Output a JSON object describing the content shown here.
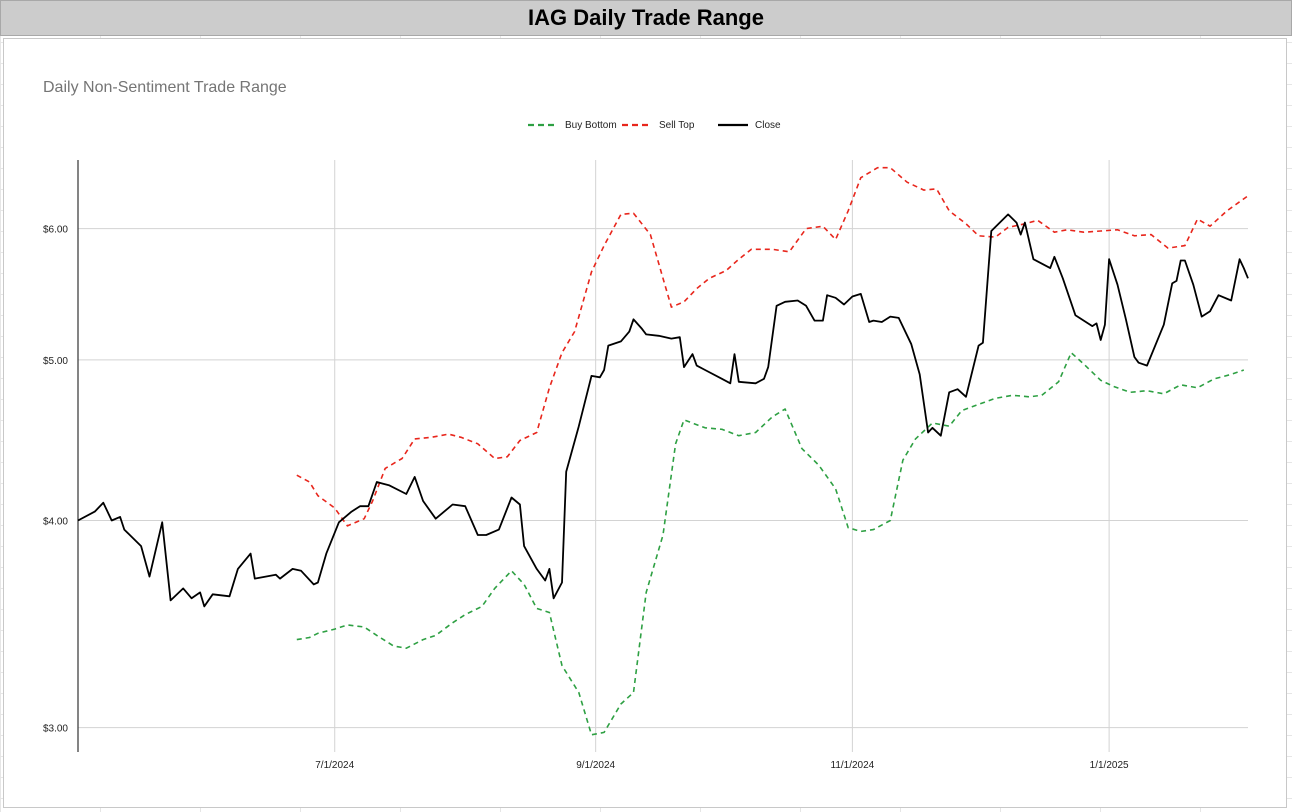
{
  "header": {
    "title": "IAG Daily Trade Range"
  },
  "chart_data": {
    "type": "line",
    "title": "Daily Non-Sentiment Trade Range",
    "xlabel": "",
    "ylabel": "",
    "y_scale": "log",
    "ylim": [
      2.9,
      6.6
    ],
    "xlim": [
      "2024-05-01",
      "2025-02-03"
    ],
    "x_ticks": [
      {
        "date": "2024-07-01",
        "label": "7/1/2024"
      },
      {
        "date": "2024-09-01",
        "label": "9/1/2024"
      },
      {
        "date": "2024-11-01",
        "label": "11/1/2024"
      },
      {
        "date": "2025-01-01",
        "label": "1/1/2025"
      }
    ],
    "y_ticks": [
      {
        "value": 3.0,
        "label": "$3.00"
      },
      {
        "value": 4.0,
        "label": "$4.00"
      },
      {
        "value": 5.0,
        "label": "$5.00"
      },
      {
        "value": 6.0,
        "label": "$6.00"
      }
    ],
    "grid": true,
    "legend_position": "top-center",
    "series": [
      {
        "name": "Buy Bottom",
        "color": "#2ea043",
        "dash": true,
        "points": [
          [
            "2024-06-22",
            3.39
          ],
          [
            "2024-06-25",
            3.4
          ],
          [
            "2024-06-27",
            3.42
          ],
          [
            "2024-07-01",
            3.44
          ],
          [
            "2024-07-04",
            3.46
          ],
          [
            "2024-07-08",
            3.45
          ],
          [
            "2024-07-11",
            3.41
          ],
          [
            "2024-07-15",
            3.36
          ],
          [
            "2024-07-18",
            3.35
          ],
          [
            "2024-07-22",
            3.39
          ],
          [
            "2024-07-25",
            3.41
          ],
          [
            "2024-07-29",
            3.47
          ],
          [
            "2024-08-01",
            3.51
          ],
          [
            "2024-08-05",
            3.55
          ],
          [
            "2024-08-08",
            3.64
          ],
          [
            "2024-08-12",
            3.73
          ],
          [
            "2024-08-15",
            3.66
          ],
          [
            "2024-08-18",
            3.54
          ],
          [
            "2024-08-21",
            3.52
          ],
          [
            "2024-08-24",
            3.27
          ],
          [
            "2024-08-28",
            3.15
          ],
          [
            "2024-08-31",
            2.97
          ],
          [
            "2024-09-03",
            2.98
          ],
          [
            "2024-09-07",
            3.1
          ],
          [
            "2024-09-10",
            3.15
          ],
          [
            "2024-09-13",
            3.62
          ],
          [
            "2024-09-17",
            3.92
          ],
          [
            "2024-09-20",
            4.45
          ],
          [
            "2024-09-22",
            4.6
          ],
          [
            "2024-09-27",
            4.55
          ],
          [
            "2024-10-01",
            4.54
          ],
          [
            "2024-10-05",
            4.5
          ],
          [
            "2024-10-09",
            4.52
          ],
          [
            "2024-10-13",
            4.62
          ],
          [
            "2024-10-16",
            4.67
          ],
          [
            "2024-10-20",
            4.42
          ],
          [
            "2024-10-24",
            4.32
          ],
          [
            "2024-10-28",
            4.18
          ],
          [
            "2024-10-31",
            3.96
          ],
          [
            "2024-11-03",
            3.94
          ],
          [
            "2024-11-06",
            3.95
          ],
          [
            "2024-11-10",
            4.0
          ],
          [
            "2024-11-13",
            4.35
          ],
          [
            "2024-11-16",
            4.48
          ],
          [
            "2024-11-20",
            4.58
          ],
          [
            "2024-11-24",
            4.56
          ],
          [
            "2024-11-27",
            4.66
          ],
          [
            "2024-12-01",
            4.7
          ],
          [
            "2024-12-05",
            4.74
          ],
          [
            "2024-12-09",
            4.76
          ],
          [
            "2024-12-13",
            4.75
          ],
          [
            "2024-12-16",
            4.76
          ],
          [
            "2024-12-20",
            4.85
          ],
          [
            "2024-12-23",
            5.05
          ],
          [
            "2024-12-26",
            4.97
          ],
          [
            "2024-12-30",
            4.86
          ],
          [
            "2025-01-02",
            4.82
          ],
          [
            "2025-01-06",
            4.78
          ],
          [
            "2025-01-10",
            4.79
          ],
          [
            "2025-01-14",
            4.77
          ],
          [
            "2025-01-18",
            4.83
          ],
          [
            "2025-01-22",
            4.81
          ],
          [
            "2025-01-26",
            4.87
          ],
          [
            "2025-01-30",
            4.9
          ],
          [
            "2025-02-02",
            4.93
          ]
        ]
      },
      {
        "name": "Sell Top",
        "color": "#e8261c",
        "dash": true,
        "points": [
          [
            "2024-06-22",
            4.26
          ],
          [
            "2024-06-25",
            4.22
          ],
          [
            "2024-06-27",
            4.14
          ],
          [
            "2024-07-01",
            4.07
          ],
          [
            "2024-07-04",
            3.97
          ],
          [
            "2024-07-08",
            4.01
          ],
          [
            "2024-07-10",
            4.11
          ],
          [
            "2024-07-13",
            4.3
          ],
          [
            "2024-07-17",
            4.36
          ],
          [
            "2024-07-20",
            4.48
          ],
          [
            "2024-07-24",
            4.49
          ],
          [
            "2024-07-28",
            4.51
          ],
          [
            "2024-07-31",
            4.49
          ],
          [
            "2024-08-04",
            4.45
          ],
          [
            "2024-08-08",
            4.36
          ],
          [
            "2024-08-11",
            4.37
          ],
          [
            "2024-08-14",
            4.47
          ],
          [
            "2024-08-18",
            4.52
          ],
          [
            "2024-08-21",
            4.81
          ],
          [
            "2024-08-24",
            5.05
          ],
          [
            "2024-08-27",
            5.2
          ],
          [
            "2024-08-31",
            5.65
          ],
          [
            "2024-09-03",
            5.86
          ],
          [
            "2024-09-07",
            6.12
          ],
          [
            "2024-09-10",
            6.13
          ],
          [
            "2024-09-14",
            5.95
          ],
          [
            "2024-09-17",
            5.6
          ],
          [
            "2024-09-19",
            5.38
          ],
          [
            "2024-09-22",
            5.42
          ],
          [
            "2024-09-25",
            5.52
          ],
          [
            "2024-09-28",
            5.6
          ],
          [
            "2024-10-02",
            5.66
          ],
          [
            "2024-10-05",
            5.75
          ],
          [
            "2024-10-08",
            5.83
          ],
          [
            "2024-10-13",
            5.83
          ],
          [
            "2024-10-17",
            5.81
          ],
          [
            "2024-10-21",
            6.0
          ],
          [
            "2024-10-25",
            6.02
          ],
          [
            "2024-10-28",
            5.91
          ],
          [
            "2024-10-31",
            6.15
          ],
          [
            "2024-11-03",
            6.44
          ],
          [
            "2024-11-07",
            6.53
          ],
          [
            "2024-11-10",
            6.53
          ],
          [
            "2024-11-14",
            6.4
          ],
          [
            "2024-11-18",
            6.33
          ],
          [
            "2024-11-21",
            6.34
          ],
          [
            "2024-11-24",
            6.15
          ],
          [
            "2024-11-28",
            6.04
          ],
          [
            "2024-12-01",
            5.94
          ],
          [
            "2024-12-05",
            5.93
          ],
          [
            "2024-12-08",
            6.01
          ],
          [
            "2024-12-12",
            6.04
          ],
          [
            "2024-12-15",
            6.07
          ],
          [
            "2024-12-19",
            5.97
          ],
          [
            "2024-12-22",
            5.99
          ],
          [
            "2024-12-26",
            5.97
          ],
          [
            "2024-12-30",
            5.98
          ],
          [
            "2025-01-03",
            5.99
          ],
          [
            "2025-01-07",
            5.94
          ],
          [
            "2025-01-11",
            5.95
          ],
          [
            "2025-01-15",
            5.84
          ],
          [
            "2025-01-19",
            5.86
          ],
          [
            "2025-01-22",
            6.08
          ],
          [
            "2025-01-25",
            6.02
          ],
          [
            "2025-01-29",
            6.15
          ],
          [
            "2025-02-03",
            6.28
          ]
        ]
      },
      {
        "name": "Close",
        "color": "#000000",
        "dash": false,
        "points": [
          [
            "2024-05-01",
            4.0
          ],
          [
            "2024-05-05",
            4.05
          ],
          [
            "2024-05-07",
            4.1
          ],
          [
            "2024-05-09",
            4.0
          ],
          [
            "2024-05-11",
            4.02
          ],
          [
            "2024-05-12",
            3.95
          ],
          [
            "2024-05-16",
            3.86
          ],
          [
            "2024-05-18",
            3.7
          ],
          [
            "2024-05-21",
            3.99
          ],
          [
            "2024-05-23",
            3.58
          ],
          [
            "2024-05-26",
            3.64
          ],
          [
            "2024-05-28",
            3.59
          ],
          [
            "2024-05-30",
            3.62
          ],
          [
            "2024-05-31",
            3.55
          ],
          [
            "2024-06-02",
            3.61
          ],
          [
            "2024-06-06",
            3.6
          ],
          [
            "2024-06-08",
            3.74
          ],
          [
            "2024-06-11",
            3.82
          ],
          [
            "2024-06-12",
            3.69
          ],
          [
            "2024-06-17",
            3.71
          ],
          [
            "2024-06-18",
            3.69
          ],
          [
            "2024-06-21",
            3.74
          ],
          [
            "2024-06-23",
            3.73
          ],
          [
            "2024-06-26",
            3.66
          ],
          [
            "2024-06-27",
            3.67
          ],
          [
            "2024-06-29",
            3.82
          ],
          [
            "2024-07-02",
            3.99
          ],
          [
            "2024-07-05",
            4.05
          ],
          [
            "2024-07-07",
            4.08
          ],
          [
            "2024-07-09",
            4.08
          ],
          [
            "2024-07-11",
            4.22
          ],
          [
            "2024-07-14",
            4.2
          ],
          [
            "2024-07-18",
            4.15
          ],
          [
            "2024-07-20",
            4.25
          ],
          [
            "2024-07-22",
            4.11
          ],
          [
            "2024-07-25",
            4.01
          ],
          [
            "2024-07-27",
            4.05
          ],
          [
            "2024-07-29",
            4.09
          ],
          [
            "2024-08-01",
            4.08
          ],
          [
            "2024-08-04",
            3.92
          ],
          [
            "2024-08-06",
            3.92
          ],
          [
            "2024-08-09",
            3.95
          ],
          [
            "2024-08-12",
            4.13
          ],
          [
            "2024-08-14",
            4.09
          ],
          [
            "2024-08-15",
            3.86
          ],
          [
            "2024-08-18",
            3.74
          ],
          [
            "2024-08-20",
            3.68
          ],
          [
            "2024-08-21",
            3.74
          ],
          [
            "2024-08-22",
            3.59
          ],
          [
            "2024-08-24",
            3.67
          ],
          [
            "2024-08-25",
            4.28
          ],
          [
            "2024-08-28",
            4.56
          ],
          [
            "2024-08-31",
            4.89
          ],
          [
            "2024-09-02",
            4.88
          ],
          [
            "2024-09-03",
            4.93
          ],
          [
            "2024-09-04",
            5.1
          ],
          [
            "2024-09-07",
            5.13
          ],
          [
            "2024-09-09",
            5.2
          ],
          [
            "2024-09-10",
            5.29
          ],
          [
            "2024-09-12",
            5.22
          ],
          [
            "2024-09-13",
            5.18
          ],
          [
            "2024-09-16",
            5.17
          ],
          [
            "2024-09-19",
            5.15
          ],
          [
            "2024-09-21",
            5.16
          ],
          [
            "2024-09-22",
            4.95
          ],
          [
            "2024-09-24",
            5.04
          ],
          [
            "2024-09-25",
            4.96
          ],
          [
            "2024-09-27",
            4.93
          ],
          [
            "2024-10-01",
            4.87
          ],
          [
            "2024-10-03",
            4.84
          ],
          [
            "2024-10-04",
            5.04
          ],
          [
            "2024-10-05",
            4.85
          ],
          [
            "2024-10-09",
            4.84
          ],
          [
            "2024-10-11",
            4.87
          ],
          [
            "2024-10-12",
            4.95
          ],
          [
            "2024-10-14",
            5.39
          ],
          [
            "2024-10-16",
            5.42
          ],
          [
            "2024-10-19",
            5.43
          ],
          [
            "2024-10-21",
            5.39
          ],
          [
            "2024-10-23",
            5.28
          ],
          [
            "2024-10-25",
            5.28
          ],
          [
            "2024-10-26",
            5.47
          ],
          [
            "2024-10-28",
            5.45
          ],
          [
            "2024-10-30",
            5.4
          ],
          [
            "2024-11-01",
            5.46
          ],
          [
            "2024-11-03",
            5.48
          ],
          [
            "2024-11-05",
            5.27
          ],
          [
            "2024-11-06",
            5.28
          ],
          [
            "2024-11-08",
            5.27
          ],
          [
            "2024-11-10",
            5.31
          ],
          [
            "2024-11-12",
            5.3
          ],
          [
            "2024-11-15",
            5.11
          ],
          [
            "2024-11-17",
            4.9
          ],
          [
            "2024-11-19",
            4.52
          ],
          [
            "2024-11-20",
            4.55
          ],
          [
            "2024-11-22",
            4.5
          ],
          [
            "2024-11-24",
            4.78
          ],
          [
            "2024-11-26",
            4.8
          ],
          [
            "2024-11-28",
            4.75
          ],
          [
            "2024-12-01",
            5.1
          ],
          [
            "2024-12-02",
            5.12
          ],
          [
            "2024-12-04",
            5.98
          ],
          [
            "2024-12-08",
            6.12
          ],
          [
            "2024-12-10",
            6.05
          ],
          [
            "2024-12-11",
            5.95
          ],
          [
            "2024-12-12",
            6.05
          ],
          [
            "2024-12-14",
            5.75
          ],
          [
            "2024-12-18",
            5.68
          ],
          [
            "2024-12-19",
            5.77
          ],
          [
            "2024-12-21",
            5.6
          ],
          [
            "2024-12-24",
            5.32
          ],
          [
            "2024-12-28",
            5.24
          ],
          [
            "2024-12-29",
            5.26
          ],
          [
            "2024-12-30",
            5.14
          ],
          [
            "2024-12-31",
            5.25
          ],
          [
            "2025-01-01",
            5.75
          ],
          [
            "2025-01-03",
            5.55
          ],
          [
            "2025-01-05",
            5.29
          ],
          [
            "2025-01-07",
            5.02
          ],
          [
            "2025-01-08",
            4.98
          ],
          [
            "2025-01-10",
            4.96
          ],
          [
            "2025-01-14",
            5.25
          ],
          [
            "2025-01-16",
            5.56
          ],
          [
            "2025-01-17",
            5.58
          ],
          [
            "2025-01-18",
            5.74
          ],
          [
            "2025-01-19",
            5.74
          ],
          [
            "2025-01-21",
            5.55
          ],
          [
            "2025-01-23",
            5.31
          ],
          [
            "2025-01-25",
            5.35
          ],
          [
            "2025-01-27",
            5.47
          ],
          [
            "2025-01-30",
            5.43
          ],
          [
            "2025-02-01",
            5.75
          ],
          [
            "2025-02-02",
            5.68
          ],
          [
            "2025-02-03",
            5.6
          ]
        ]
      }
    ]
  }
}
